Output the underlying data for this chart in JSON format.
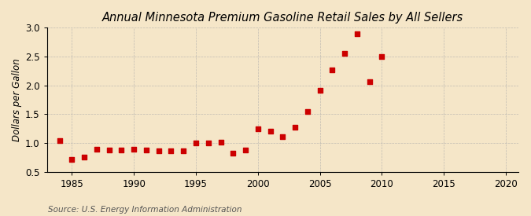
{
  "title": "Annual Minnesota Premium Gasoline Retail Sales by All Sellers",
  "ylabel": "Dollars per Gallon",
  "source": "Source: U.S. Energy Information Administration",
  "background_color": "#f5e6c8",
  "plot_bg_color": "#f5e6c8",
  "years": [
    1984,
    1985,
    1986,
    1987,
    1988,
    1989,
    1990,
    1991,
    1992,
    1993,
    1994,
    1995,
    1996,
    1997,
    1998,
    1999,
    2000,
    2001,
    2002,
    2003,
    2004,
    2005,
    2006,
    2007,
    2008,
    2009,
    2010
  ],
  "values": [
    1.04,
    0.71,
    0.76,
    0.89,
    0.88,
    0.88,
    0.89,
    0.88,
    0.87,
    0.87,
    0.87,
    1.0,
    1.0,
    1.01,
    0.82,
    0.88,
    1.24,
    1.21,
    1.11,
    1.28,
    1.55,
    1.92,
    2.27,
    2.55,
    2.9,
    2.06,
    2.5
  ],
  "marker_color": "#cc0000",
  "marker_size": 16,
  "xlim": [
    1983,
    2021
  ],
  "ylim": [
    0.5,
    3.0
  ],
  "xticks": [
    1985,
    1990,
    1995,
    2000,
    2005,
    2010,
    2015,
    2020
  ],
  "yticks": [
    0.5,
    1.0,
    1.5,
    2.0,
    2.5,
    3.0
  ],
  "title_fontsize": 10.5,
  "axis_fontsize": 8.5,
  "source_fontsize": 7.5,
  "grid_color": "#aaaaaa",
  "grid_alpha": 0.7,
  "grid_linestyle": "--",
  "grid_linewidth": 0.5
}
